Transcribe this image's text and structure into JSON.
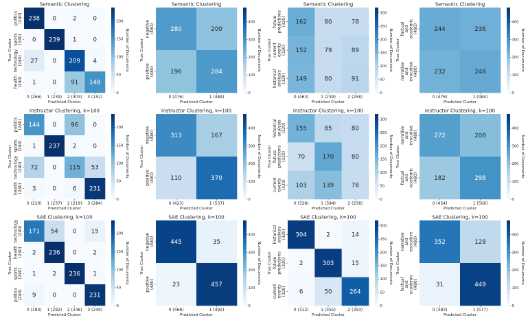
{
  "chart_data": [
    {
      "type": "heatmap",
      "title": "Semantic Clustering",
      "xlabel": "Predicted Cluster",
      "ylabel": "True Cluster",
      "colorbar_label": "Number of Documents",
      "x_ticks": [
        "0 (266)",
        "1 (239)",
        "2 (303)",
        "3 (152)"
      ],
      "y_ticks": [
        "politics\n(240)",
        "sports\n(240)",
        "technology\n(240)",
        "health\n(240)"
      ],
      "values": [
        [
          238,
          0,
          2,
          0
        ],
        [
          0,
          239,
          1,
          0
        ],
        [
          27,
          0,
          209,
          4
        ],
        [
          1,
          0,
          91,
          148
        ]
      ],
      "vmax": 238,
      "colorbar_ticks": [
        0,
        50,
        100,
        150,
        200
      ]
    },
    {
      "type": "heatmap",
      "title": "Semantic Clustering",
      "xlabel": "Predicted Cluster",
      "ylabel": "True Cluster",
      "colorbar_label": "Number of Documents",
      "x_ticks": [
        "0 (476)",
        "1 (484)"
      ],
      "y_ticks": [
        "negative\n(480)",
        "positive\n(480)"
      ],
      "values": [
        [
          280,
          200
        ],
        [
          196,
          284
        ]
      ],
      "vmax": 480,
      "colorbar_ticks": [
        0,
        100,
        200,
        300,
        400
      ]
    },
    {
      "type": "heatmap",
      "title": "Semantic Clustering",
      "xlabel": "Predicted Cluster",
      "ylabel": "True Cluster",
      "colorbar_label": "Number of Documents",
      "x_ticks": [
        "0 (463)",
        "1 (239)",
        "2 (258)"
      ],
      "y_ticks": [
        "future\npredictions\n(320)",
        "current\nevents\n(320)",
        "historical\nanalysis\n(320)"
      ],
      "values": [
        [
          162,
          80,
          78
        ],
        [
          152,
          79,
          89
        ],
        [
          149,
          80,
          91
        ]
      ],
      "vmax": 320,
      "colorbar_ticks": [
        0,
        50,
        100,
        150,
        200,
        250,
        300
      ]
    },
    {
      "type": "heatmap",
      "title": "Semantic Clustering",
      "xlabel": "Predicted Cluster",
      "ylabel": "True Cluster",
      "colorbar_label": "Number of Documents",
      "x_ticks": [
        "0 (476)",
        "1 (484)"
      ],
      "y_ticks": [
        "factual\nand\nacademic\n(480)",
        "narrative\nand\nevocative\n(480)"
      ],
      "values": [
        [
          244,
          236
        ],
        [
          232,
          248
        ]
      ],
      "vmax": 480,
      "colorbar_ticks": [
        0,
        100,
        200,
        300,
        400
      ]
    },
    {
      "type": "heatmap",
      "title": "Instructor Clustering, k=100",
      "xlabel": "Predicted Cluster",
      "ylabel": "True Cluster",
      "colorbar_label": "Number of Documents",
      "x_ticks": [
        "0 (220)",
        "1 (237)",
        "2 (219)",
        "3 (284)"
      ],
      "y_ticks": [
        "politics\n(240)",
        "sports\n(240)",
        "technology\n(240)",
        "health\n(240)"
      ],
      "values": [
        [
          144,
          0,
          96,
          0
        ],
        [
          1,
          237,
          2,
          0
        ],
        [
          72,
          0,
          115,
          53
        ],
        [
          3,
          0,
          6,
          231
        ]
      ],
      "vmax": 237,
      "colorbar_ticks": [
        0,
        50,
        100,
        150,
        200
      ]
    },
    {
      "type": "heatmap",
      "title": "Instructor Clustering, k=100",
      "xlabel": "Predicted Cluster",
      "ylabel": "True Cluster",
      "colorbar_label": "Number of Documents",
      "x_ticks": [
        "0 (423)",
        "1 (537)"
      ],
      "y_ticks": [
        "negative\n(480)",
        "positive\n(480)"
      ],
      "values": [
        [
          313,
          167
        ],
        [
          110,
          370
        ]
      ],
      "vmax": 480,
      "colorbar_ticks": [
        0,
        100,
        200,
        300,
        400
      ]
    },
    {
      "type": "heatmap",
      "title": "Instructor Clustering, k=100",
      "xlabel": "Predicted Cluster",
      "ylabel": "True Cluster",
      "colorbar_label": "Number of Documents",
      "x_ticks": [
        "0 (328)",
        "1 (394)",
        "2 (238)"
      ],
      "y_ticks": [
        "historical\nanalysis\n(320)",
        "future\npredictions\n(320)",
        "current\nevents\n(320)"
      ],
      "values": [
        [
          155,
          85,
          80
        ],
        [
          70,
          170,
          80
        ],
        [
          103,
          139,
          78
        ]
      ],
      "vmax": 320,
      "colorbar_ticks": [
        0,
        50,
        100,
        150,
        200,
        250,
        300
      ]
    },
    {
      "type": "heatmap",
      "title": "Instructor Clustering, k=100",
      "xlabel": "Predicted Cluster",
      "ylabel": "True Cluster",
      "colorbar_label": "Number of Documents",
      "x_ticks": [
        "0 (454)",
        "1 (506)"
      ],
      "y_ticks": [
        "narrative\nand\nevocative\n(480)",
        "factual\nand\nacademic\n(480)"
      ],
      "values": [
        [
          272,
          208
        ],
        [
          182,
          298
        ]
      ],
      "vmax": 480,
      "colorbar_ticks": [
        0,
        100,
        200,
        300,
        400
      ]
    },
    {
      "type": "heatmap",
      "title": "SAE Clustering, k=100",
      "xlabel": "Predicted Cluster",
      "ylabel": "True Cluster",
      "colorbar_label": "Number of Documents",
      "x_ticks": [
        "0 (183)",
        "1 (292)",
        "2 (236)",
        "3 (249)"
      ],
      "y_ticks": [
        "technology\n(240)",
        "health\n(240)",
        "sports\n(240)",
        "politics\n(240)"
      ],
      "values": [
        [
          171,
          54,
          0,
          15
        ],
        [
          2,
          236,
          0,
          2
        ],
        [
          1,
          2,
          236,
          1
        ],
        [
          9,
          0,
          0,
          231
        ]
      ],
      "vmax": 236,
      "colorbar_ticks": [
        0,
        50,
        100,
        150,
        200
      ]
    },
    {
      "type": "heatmap",
      "title": "SAE Clustering, k=100",
      "xlabel": "Predicted Cluster",
      "ylabel": "True Cluster",
      "colorbar_label": "Number of Documents",
      "x_ticks": [
        "0 (468)",
        "1 (492)"
      ],
      "y_ticks": [
        "negative\n(480)",
        "positive\n(480)"
      ],
      "values": [
        [
          445,
          35
        ],
        [
          23,
          457
        ]
      ],
      "vmax": 480,
      "colorbar_ticks": [
        0,
        100,
        200,
        300,
        400
      ]
    },
    {
      "type": "heatmap",
      "title": "SAE Clustering, k=100",
      "xlabel": "Predicted Cluster",
      "ylabel": "True Cluster",
      "colorbar_label": "Number of Documents",
      "x_ticks": [
        "0 (312)",
        "1 (355)",
        "2 (293)"
      ],
      "y_ticks": [
        "historical\nanalysis\n(320)",
        "future\npredictions\n(320)",
        "current\nevents\n(320)"
      ],
      "values": [
        [
          304,
          2,
          14
        ],
        [
          2,
          303,
          15
        ],
        [
          6,
          50,
          264
        ]
      ],
      "vmax": 320,
      "colorbar_ticks": [
        0,
        50,
        100,
        150,
        200,
        250,
        300
      ]
    },
    {
      "type": "heatmap",
      "title": "SAE Clustering, k=100",
      "xlabel": "Predicted Cluster",
      "ylabel": "True Cluster",
      "colorbar_label": "Number of Documents",
      "x_ticks": [
        "0 (383)",
        "1 (577)"
      ],
      "y_ticks": [
        "narrative\nand\nevocative\n(480)",
        "factual\nand\nacademic\n(480)"
      ],
      "values": [
        [
          352,
          128
        ],
        [
          31,
          449
        ]
      ],
      "vmax": 480,
      "colorbar_ticks": [
        0,
        100,
        200,
        300,
        400
      ]
    }
  ]
}
